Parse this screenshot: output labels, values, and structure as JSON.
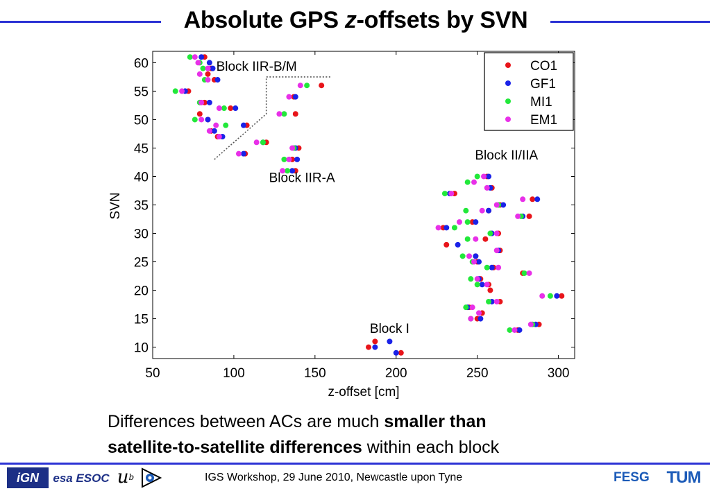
{
  "slide": {
    "title_pre": "Absolute GPS ",
    "title_em": "z",
    "title_post": "-offsets by SVN",
    "caption_part1": "Differences between ACs are much ",
    "caption_bold1": "smaller than",
    "caption_bold2": "satellite-to-satellite differences",
    "caption_part2": " within each block",
    "footer": "IGS Workshop, 29 June 2010, Newcastle upon Tyne",
    "logos": {
      "ign": "iGN",
      "esa": "esa ESOC",
      "ub": "u",
      "ub_sup": "b",
      "fesg": "FESG",
      "tum": "TUM"
    }
  },
  "colors": {
    "accent_line": "#2b32d4",
    "CO1": "#e8141a",
    "GF1": "#1a22e8",
    "MI1": "#22e83a",
    "EM1": "#e830e8"
  },
  "chart_data": {
    "type": "scatter",
    "xlabel": "z-offset [cm]",
    "ylabel": "SVN",
    "xlim": [
      50,
      310
    ],
    "ylim": [
      8,
      62
    ],
    "xticks": [
      50,
      100,
      150,
      200,
      250,
      300
    ],
    "yticks": [
      10,
      15,
      20,
      25,
      30,
      35,
      40,
      45,
      50,
      55,
      60
    ],
    "grid": false,
    "legend_position": "top-right",
    "annotations": [
      {
        "text": "Block IIR-B/M",
        "x": 114,
        "y": 58.6
      },
      {
        "text": "Block IIR-A",
        "x": 142,
        "y": 39.0
      },
      {
        "text": "Block II/IIA",
        "x": 268,
        "y": 43.0
      },
      {
        "text": "Block I",
        "x": 196,
        "y": 12.5
      }
    ],
    "separator_path": [
      [
        88,
        43
      ],
      [
        120,
        51
      ],
      [
        120,
        57.5
      ],
      [
        160,
        57.5
      ]
    ],
    "series": [
      {
        "name": "CO1",
        "points": [
          [
            82,
            61
          ],
          [
            86,
            59
          ],
          [
            84,
            58
          ],
          [
            88,
            57
          ],
          [
            72,
            55
          ],
          [
            82,
            53
          ],
          [
            79,
            51
          ],
          [
            84,
            50
          ],
          [
            86,
            48
          ],
          [
            90,
            47
          ],
          [
            98,
            52
          ],
          [
            108,
            49
          ],
          [
            120,
            46
          ],
          [
            107,
            44
          ],
          [
            140,
            45
          ],
          [
            136,
            43
          ],
          [
            138,
            41
          ],
          [
            138,
            51
          ],
          [
            137,
            54
          ],
          [
            154,
            56
          ],
          [
            256,
            40
          ],
          [
            259,
            38
          ],
          [
            236,
            37
          ],
          [
            284,
            36
          ],
          [
            264,
            35
          ],
          [
            257,
            34
          ],
          [
            229,
            31
          ],
          [
            282,
            33
          ],
          [
            247,
            32
          ],
          [
            263,
            30
          ],
          [
            255,
            29
          ],
          [
            231,
            28
          ],
          [
            264,
            27
          ],
          [
            249,
            26
          ],
          [
            250,
            25
          ],
          [
            260,
            24
          ],
          [
            278,
            23
          ],
          [
            252,
            22
          ],
          [
            258,
            20
          ],
          [
            257,
            21
          ],
          [
            302,
            19
          ],
          [
            264,
            18
          ],
          [
            245,
            17
          ],
          [
            253,
            16
          ],
          [
            250,
            15
          ],
          [
            288,
            14
          ],
          [
            275,
            13
          ],
          [
            187,
            11
          ],
          [
            183,
            10
          ],
          [
            203,
            9
          ]
        ]
      },
      {
        "name": "GF1",
        "points": [
          [
            80,
            61
          ],
          [
            85,
            60
          ],
          [
            87,
            59
          ],
          [
            90,
            57
          ],
          [
            70,
            55
          ],
          [
            85,
            53
          ],
          [
            101,
            52
          ],
          [
            106,
            49
          ],
          [
            88,
            48
          ],
          [
            84,
            50
          ],
          [
            93,
            47
          ],
          [
            118,
            46
          ],
          [
            106,
            44
          ],
          [
            138,
            45
          ],
          [
            139,
            43
          ],
          [
            136,
            41
          ],
          [
            138,
            54
          ],
          [
            257,
            40
          ],
          [
            258,
            38
          ],
          [
            233,
            37
          ],
          [
            287,
            36
          ],
          [
            266,
            35
          ],
          [
            257,
            34
          ],
          [
            231,
            31
          ],
          [
            278,
            33
          ],
          [
            249,
            32
          ],
          [
            259,
            30
          ],
          [
            238,
            28
          ],
          [
            251,
            25
          ],
          [
            249,
            26
          ],
          [
            263,
            27
          ],
          [
            259,
            24
          ],
          [
            251,
            22
          ],
          [
            253,
            21
          ],
          [
            299,
            19
          ],
          [
            259,
            18
          ],
          [
            244,
            17
          ],
          [
            252,
            15
          ],
          [
            286,
            14
          ],
          [
            276,
            13
          ],
          [
            196,
            11
          ],
          [
            187,
            10
          ],
          [
            200,
            9
          ]
        ]
      },
      {
        "name": "MI1",
        "points": [
          [
            73,
            61
          ],
          [
            79,
            60
          ],
          [
            81,
            59
          ],
          [
            82,
            57
          ],
          [
            64,
            55
          ],
          [
            79,
            53
          ],
          [
            94,
            52
          ],
          [
            76,
            50
          ],
          [
            95,
            49
          ],
          [
            118,
            46
          ],
          [
            137,
            45
          ],
          [
            131,
            43
          ],
          [
            133,
            41
          ],
          [
            131,
            51
          ],
          [
            145,
            56
          ],
          [
            250,
            40
          ],
          [
            244,
            39
          ],
          [
            230,
            37
          ],
          [
            243,
            34
          ],
          [
            244,
            32
          ],
          [
            236,
            31
          ],
          [
            277,
            33
          ],
          [
            244,
            29
          ],
          [
            241,
            26
          ],
          [
            258,
            30
          ],
          [
            263,
            35
          ],
          [
            256,
            24
          ],
          [
            247,
            25
          ],
          [
            279,
            23
          ],
          [
            246,
            22
          ],
          [
            250,
            21
          ],
          [
            295,
            19
          ],
          [
            257,
            18
          ],
          [
            243,
            17
          ],
          [
            246,
            15
          ],
          [
            284,
            14
          ],
          [
            270,
            13
          ]
        ]
      },
      {
        "name": "EM1",
        "points": [
          [
            76,
            61
          ],
          [
            78,
            60
          ],
          [
            84,
            59
          ],
          [
            79,
            58
          ],
          [
            84,
            57
          ],
          [
            68,
            55
          ],
          [
            80,
            53
          ],
          [
            91,
            52
          ],
          [
            80,
            50
          ],
          [
            89,
            49
          ],
          [
            85,
            48
          ],
          [
            91,
            47
          ],
          [
            114,
            46
          ],
          [
            103,
            44
          ],
          [
            136,
            45
          ],
          [
            134,
            43
          ],
          [
            130,
            41
          ],
          [
            128,
            51
          ],
          [
            134,
            54
          ],
          [
            141,
            56
          ],
          [
            254,
            40
          ],
          [
            248,
            39
          ],
          [
            256,
            38
          ],
          [
            234,
            37
          ],
          [
            278,
            36
          ],
          [
            262,
            35
          ],
          [
            253,
            34
          ],
          [
            226,
            31
          ],
          [
            275,
            33
          ],
          [
            239,
            32
          ],
          [
            262,
            30
          ],
          [
            249,
            29
          ],
          [
            262,
            27
          ],
          [
            245,
            26
          ],
          [
            248,
            25
          ],
          [
            263,
            24
          ],
          [
            282,
            23
          ],
          [
            250,
            22
          ],
          [
            256,
            21
          ],
          [
            290,
            19
          ],
          [
            262,
            18
          ],
          [
            247,
            17
          ],
          [
            246,
            15
          ],
          [
            251,
            16
          ],
          [
            283,
            14
          ],
          [
            273,
            13
          ]
        ]
      }
    ]
  }
}
